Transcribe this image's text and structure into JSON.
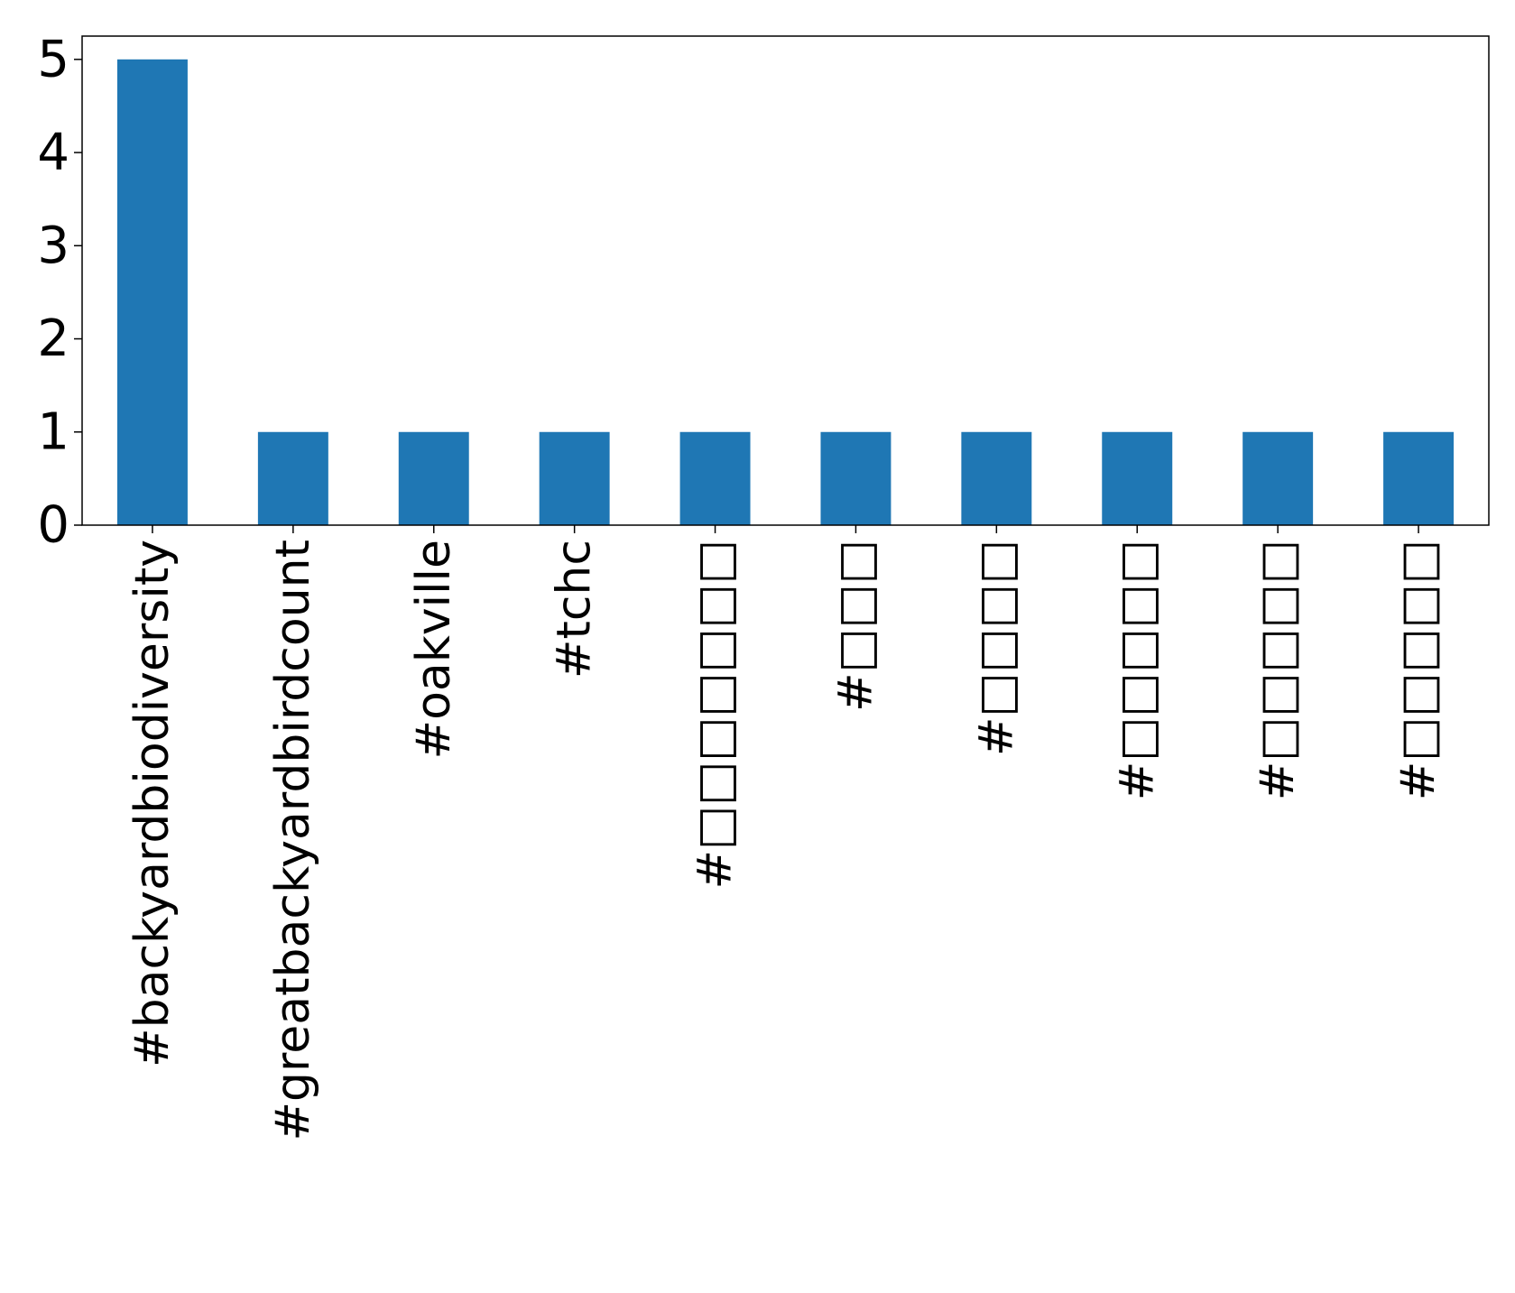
{
  "chart_data": {
    "type": "bar",
    "title": "",
    "xlabel": "",
    "ylabel": "",
    "categories": [
      "#backyardbiodiversity",
      "#greatbackyardbirdcount",
      "#oakville",
      "#tchc",
      "#□□□□□□□",
      "#□□□",
      "#□□□□",
      "#□□□□□",
      "#□□□□□",
      "#□□□□□"
    ],
    "values": [
      5,
      1,
      1,
      1,
      1,
      1,
      1,
      1,
      1,
      1
    ],
    "ylim": [
      0,
      5.25
    ],
    "yticks": [
      "0",
      "1",
      "2",
      "3",
      "4",
      "5"
    ],
    "grid": false,
    "legend": "none",
    "colors": {
      "bar": "#1f77b4",
      "axis": "#000000",
      "background": "#ffffff"
    }
  }
}
